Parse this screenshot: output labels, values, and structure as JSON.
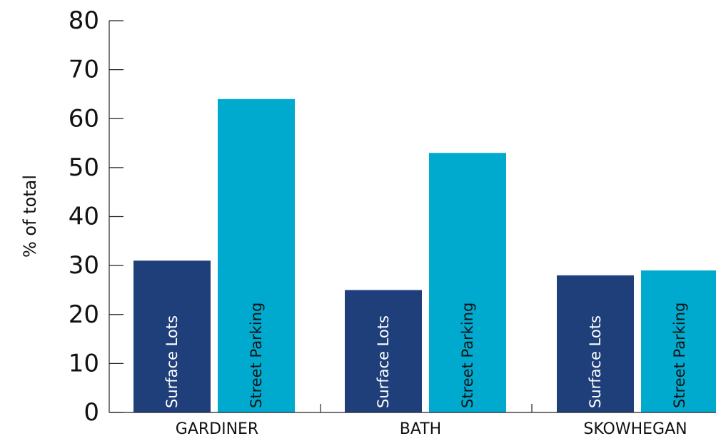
{
  "chart_data": {
    "type": "bar",
    "title": "",
    "xlabel": "",
    "ylabel": "% of total",
    "ylim": [
      0,
      80
    ],
    "yticks": [
      0,
      10,
      20,
      30,
      40,
      50,
      60,
      70,
      80
    ],
    "grid": false,
    "categories": [
      "GARDINER",
      "BATH",
      "SKOWHEGAN"
    ],
    "series": [
      {
        "name": "Surface Lots",
        "color": "#1f3f7a",
        "label_color": "#ffffff",
        "values": [
          31,
          25,
          28
        ]
      },
      {
        "name": "Street Parking",
        "color": "#00aacf",
        "label_color": "#111111",
        "values": [
          64,
          53,
          29
        ]
      }
    ],
    "legend": "none"
  }
}
